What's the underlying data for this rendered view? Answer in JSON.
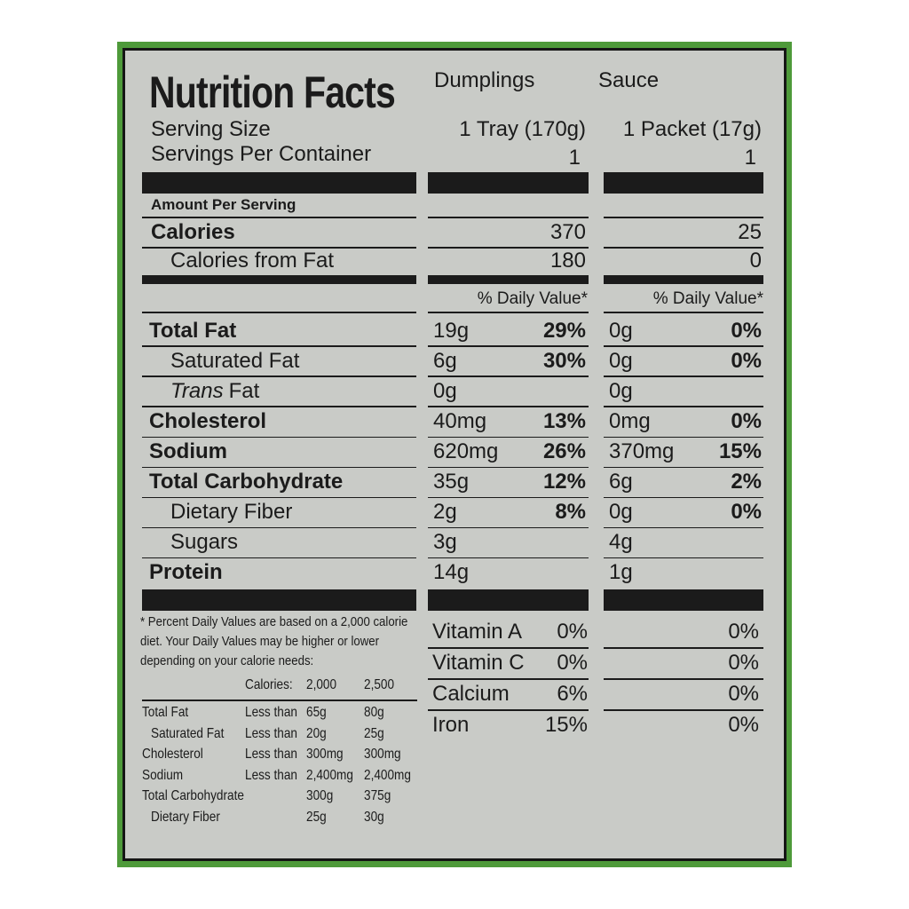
{
  "title": "Nutrition Facts",
  "columns": [
    "Dumplings",
    "Sauce"
  ],
  "serving_size_label": "Serving Size",
  "servings_label": "Servings Per Container",
  "serving_sizes": [
    "1 Tray (170g)",
    "1 Packet (17g)"
  ],
  "servings": [
    "1",
    "1"
  ],
  "amount_per_serving": "Amount Per Serving",
  "calories": {
    "label": "Calories",
    "values": [
      "370",
      "25"
    ]
  },
  "calories_from_fat": {
    "label": "Calories from Fat",
    "values": [
      "180",
      "0"
    ]
  },
  "daily_value_header": [
    "% Daily Value*",
    "% Daily Value*"
  ],
  "nutrients": [
    {
      "label": "Total Fat",
      "bold": true,
      "dumplings": [
        "19g",
        "29%"
      ],
      "sauce": [
        "0g",
        "0%"
      ]
    },
    {
      "label": "Saturated Fat",
      "bold": false,
      "dumplings": [
        "6g",
        "30%"
      ],
      "sauce": [
        "0g",
        "0%"
      ]
    },
    {
      "label_parts": [
        "Trans",
        "Fat"
      ],
      "bold": false,
      "dumplings": [
        "0g"
      ],
      "sauce": [
        "0g"
      ]
    },
    {
      "label": "Cholesterol",
      "bold": true,
      "dumplings": [
        "40mg",
        "13%"
      ],
      "sauce": [
        "0mg",
        "0%"
      ]
    },
    {
      "label": "Sodium",
      "bold": true,
      "dumplings": [
        "620mg",
        "26%"
      ],
      "sauce": [
        "370mg",
        "15%"
      ]
    },
    {
      "label": "Total Carbohydrate",
      "bold": true,
      "dumplings": [
        "35g",
        "12%"
      ],
      "sauce": [
        "6g",
        "2%"
      ]
    },
    {
      "label": "Dietary Fiber",
      "bold": false,
      "dumplings": [
        "2g",
        "8%"
      ],
      "sauce": [
        "0g",
        "0%"
      ]
    },
    {
      "label": "Sugars",
      "bold": false,
      "dumplings": [
        "3g"
      ],
      "sauce": [
        "4g"
      ]
    },
    {
      "label": "Protein",
      "bold": true,
      "dumplings": [
        "14g"
      ],
      "sauce": [
        "1g"
      ]
    }
  ],
  "vitamins": [
    {
      "label": "Vitamin A",
      "dumplings": "0%",
      "sauce": "0%"
    },
    {
      "label": "Vitamin C",
      "dumplings": "0%",
      "sauce": "0%"
    },
    {
      "label": "Calcium",
      "dumplings": "6%",
      "sauce": "0%"
    },
    {
      "label": "Iron",
      "dumplings": "15%",
      "sauce": "0%"
    }
  ],
  "footnote": {
    "text": "* Percent Daily Values are based on a 2,000 calorie diet. Your Daily Values may be higher or lower depending on your calorie needs:",
    "header": [
      "Calories:",
      "2,000",
      "2,500"
    ],
    "rows": [
      {
        "label": "Total Fat",
        "qualifier": "Less than",
        "values": [
          "65g",
          "80g"
        ]
      },
      {
        "label": "Saturated Fat",
        "qualifier": "Less than",
        "values": [
          "20g",
          "25g"
        ]
      },
      {
        "label": "Cholesterol",
        "qualifier": "Less than",
        "values": [
          "300mg",
          "300mg"
        ]
      },
      {
        "label": "Sodium",
        "qualifier": "Less than",
        "values": [
          "2,400mg",
          "2,400mg"
        ]
      },
      {
        "label": "Total Carbohydrate",
        "values": [
          "300g",
          "375g"
        ]
      },
      {
        "label": "Dietary Fiber",
        "values": [
          "25g",
          "30g"
        ]
      }
    ]
  }
}
